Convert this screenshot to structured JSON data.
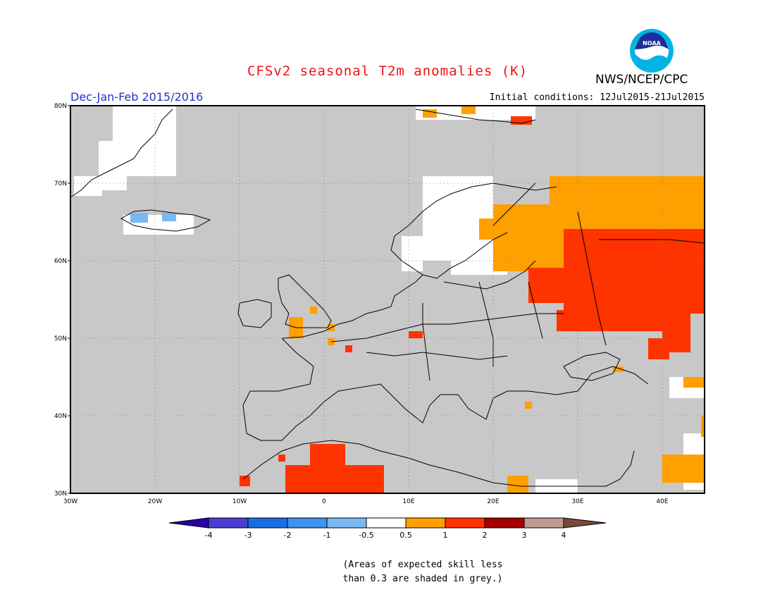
{
  "header": {
    "title": "CFSv2 seasonal T2m anomalies (K)",
    "season": "Dec-Jan-Feb 2015/2016",
    "initial_conditions": "Initial conditions: 12Jul2015-21Jul2015",
    "agency": "NWS/NCEP/CPC",
    "logo_text": "NOAA"
  },
  "map": {
    "lon_range": [
      -30,
      45
    ],
    "lat_range": [
      30,
      80
    ],
    "lon_ticks": [
      "30W",
      "20W",
      "10W",
      "0",
      "10E",
      "20E",
      "30E",
      "40E"
    ],
    "lat_ticks": [
      "80N",
      "70N",
      "60N",
      "50N",
      "40N",
      "30N"
    ],
    "grid": "dotted",
    "land_color": "#c8c8c8"
  },
  "colorbar": {
    "labels": [
      "-4",
      "-3",
      "-2",
      "-1",
      "-0.5",
      "0.5",
      "1",
      "2",
      "3",
      "4"
    ],
    "colors": [
      "#2a00a8",
      "#4a3fd0",
      "#1a6ee0",
      "#3f92ee",
      "#7ab8f2",
      "#ffffff",
      "#ffa000",
      "#ff3300",
      "#a40000",
      "#c09a90",
      "#7a4a3a"
    ]
  },
  "note": {
    "line1": "(Areas of expected skill less",
    "line2": "than 0.3 are shaded in grey.)"
  }
}
